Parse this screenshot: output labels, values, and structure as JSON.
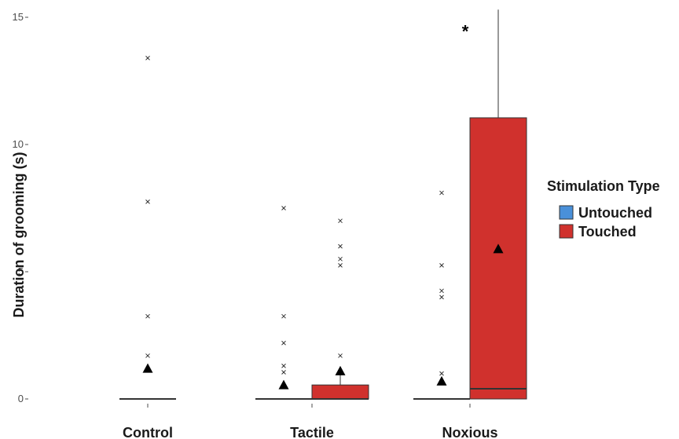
{
  "chart_data": {
    "type": "box",
    "ylabel": "Duration of grooming (s)",
    "xlabel": "",
    "ylim": [
      0,
      15
    ],
    "yticks": [
      0,
      5,
      10,
      15
    ],
    "categories": [
      "Control",
      "Tactile",
      "Noxious"
    ],
    "legend": {
      "title": "Stimulation Type",
      "position": "right",
      "entries": [
        {
          "name": "Untouched",
          "color": "#4a90d9"
        },
        {
          "name": "Touched",
          "color": "#d0312d"
        }
      ]
    },
    "boxes": [
      {
        "category": "Control",
        "series": "Untouched",
        "min": 0,
        "q1": 0,
        "median": 0,
        "q3": 0,
        "max": 0,
        "mean": 1.2,
        "outliers": [
          1.7,
          3.25,
          7.75,
          13.4
        ]
      },
      {
        "category": "Tactile",
        "series": "Untouched",
        "min": 0,
        "q1": 0,
        "median": 0,
        "q3": 0,
        "max": 0,
        "mean": 0.55,
        "outliers": [
          1.05,
          1.3,
          2.2,
          3.25,
          7.5
        ]
      },
      {
        "category": "Tactile",
        "series": "Touched",
        "min": 0,
        "q1": 0,
        "median": 0,
        "q3": 0.55,
        "max": 1.0,
        "mean": 1.1,
        "outliers": [
          1.7,
          5.25,
          5.5,
          6.0,
          7.0
        ]
      },
      {
        "category": "Noxious",
        "series": "Untouched",
        "min": 0,
        "q1": 0,
        "median": 0,
        "q3": 0,
        "max": 0,
        "mean": 0.7,
        "outliers": [
          1.0,
          4.0,
          4.25,
          5.25,
          8.1
        ]
      },
      {
        "category": "Noxious",
        "series": "Touched",
        "min": 0,
        "q1": 0,
        "median": 0.4,
        "q3": 11.05,
        "max": 15.3,
        "mean": 5.9,
        "outliers": []
      }
    ],
    "annotations": [
      {
        "text": "*",
        "category": "Noxious",
        "y": 14.7
      }
    ],
    "grid": false
  }
}
